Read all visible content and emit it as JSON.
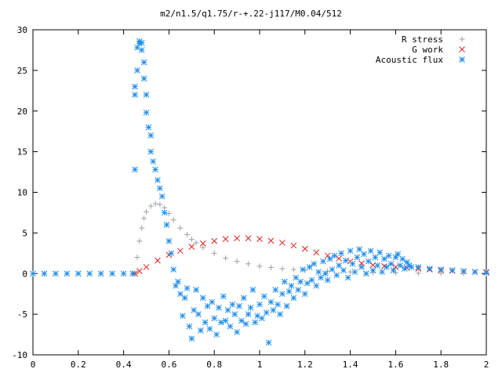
{
  "chart_data": {
    "type": "scatter",
    "title": "m2/n1.5/q1.75/r-+.22-j117/M0.04/512",
    "xlabel": "",
    "ylabel": "",
    "xlim": [
      0,
      2
    ],
    "ylim": [
      -10,
      30
    ],
    "x_ticks": [
      0,
      0.2,
      0.4,
      0.6,
      0.8,
      1,
      1.2,
      1.4,
      1.6,
      1.8,
      2
    ],
    "x_tick_labels": [
      "0",
      "0.2",
      "0.4",
      "0.6",
      "0.8",
      "1",
      "1.2",
      "1.4",
      "1.6",
      "1.8",
      "2"
    ],
    "y_ticks": [
      -10,
      -5,
      0,
      5,
      10,
      15,
      20,
      25,
      30
    ],
    "y_tick_labels": [
      "-10",
      "-5",
      "0",
      "5",
      "10",
      "15",
      "20",
      "25",
      "30"
    ],
    "grid": false,
    "legend_position": "top-right",
    "series": [
      {
        "name": "R stress",
        "marker": "plus",
        "color": "#a0a0a0",
        "points": [
          [
            0.45,
            0.0
          ],
          [
            0.46,
            2.0
          ],
          [
            0.47,
            4.0
          ],
          [
            0.48,
            5.6
          ],
          [
            0.49,
            6.8
          ],
          [
            0.5,
            7.6
          ],
          [
            0.52,
            8.3
          ],
          [
            0.54,
            8.6
          ],
          [
            0.56,
            8.5
          ],
          [
            0.58,
            8.1
          ],
          [
            0.6,
            7.4
          ],
          [
            0.62,
            6.6
          ],
          [
            0.65,
            5.6
          ],
          [
            0.68,
            4.8
          ],
          [
            0.7,
            4.2
          ],
          [
            0.72,
            3.8
          ],
          [
            0.75,
            3.2
          ],
          [
            0.8,
            2.5
          ],
          [
            0.85,
            1.9
          ],
          [
            0.9,
            1.5
          ],
          [
            0.95,
            1.2
          ],
          [
            1.0,
            0.9
          ],
          [
            1.05,
            0.75
          ],
          [
            1.1,
            0.6
          ],
          [
            1.15,
            0.5
          ],
          [
            1.2,
            0.42
          ],
          [
            1.3,
            0.3
          ],
          [
            1.4,
            0.2
          ],
          [
            1.5,
            0.12
          ],
          [
            1.6,
            0.08
          ],
          [
            1.7,
            0.05
          ],
          [
            1.8,
            0.03
          ],
          [
            1.9,
            0.02
          ],
          [
            2.0,
            0.01
          ]
        ]
      },
      {
        "name": "G work",
        "marker": "cross",
        "color": "#e0201e",
        "points": [
          [
            0.45,
            0.0
          ],
          [
            0.47,
            0.3
          ],
          [
            0.5,
            0.8
          ],
          [
            0.55,
            1.6
          ],
          [
            0.6,
            2.3
          ],
          [
            0.65,
            2.8
          ],
          [
            0.7,
            3.3
          ],
          [
            0.75,
            3.7
          ],
          [
            0.8,
            4.0
          ],
          [
            0.85,
            4.25
          ],
          [
            0.9,
            4.35
          ],
          [
            0.95,
            4.35
          ],
          [
            1.0,
            4.25
          ],
          [
            1.05,
            4.05
          ],
          [
            1.1,
            3.8
          ],
          [
            1.15,
            3.45
          ],
          [
            1.2,
            3.05
          ],
          [
            1.25,
            2.6
          ],
          [
            1.3,
            2.2
          ],
          [
            1.35,
            1.85
          ],
          [
            1.4,
            1.5
          ],
          [
            1.45,
            1.25
          ],
          [
            1.5,
            1.05
          ],
          [
            1.55,
            0.9
          ],
          [
            1.6,
            0.8
          ],
          [
            1.65,
            0.7
          ],
          [
            1.7,
            0.6
          ],
          [
            1.75,
            0.5
          ],
          [
            1.8,
            0.42
          ],
          [
            1.85,
            0.35
          ],
          [
            1.9,
            0.28
          ],
          [
            1.95,
            0.22
          ],
          [
            2.0,
            0.18
          ]
        ]
      },
      {
        "name": "Acoustic flux",
        "marker": "star",
        "color": "#1f8de8",
        "points": [
          [
            0.0,
            0.0
          ],
          [
            0.05,
            0.0
          ],
          [
            0.1,
            0.0
          ],
          [
            0.15,
            0.0
          ],
          [
            0.2,
            0.0
          ],
          [
            0.25,
            0.0
          ],
          [
            0.3,
            0.0
          ],
          [
            0.35,
            0.0
          ],
          [
            0.4,
            0.0
          ],
          [
            0.44,
            0.0
          ],
          [
            0.45,
            12.8
          ],
          [
            0.45,
            22.0
          ],
          [
            0.45,
            23.0
          ],
          [
            0.46,
            25.0
          ],
          [
            0.46,
            27.8
          ],
          [
            0.47,
            28.3
          ],
          [
            0.47,
            28.6
          ],
          [
            0.48,
            28.4
          ],
          [
            0.48,
            27.5
          ],
          [
            0.49,
            26.0
          ],
          [
            0.49,
            24.0
          ],
          [
            0.5,
            22.0
          ],
          [
            0.5,
            19.8
          ],
          [
            0.51,
            18.0
          ],
          [
            0.52,
            17.0
          ],
          [
            0.52,
            15.0
          ],
          [
            0.53,
            13.8
          ],
          [
            0.54,
            12.8
          ],
          [
            0.55,
            11.5
          ],
          [
            0.56,
            10.5
          ],
          [
            0.57,
            9.5
          ],
          [
            0.58,
            7.5
          ],
          [
            0.59,
            6.0
          ],
          [
            0.6,
            4.0
          ],
          [
            0.61,
            2.5
          ],
          [
            0.62,
            0.5
          ],
          [
            0.63,
            -1.5
          ],
          [
            0.64,
            -1.0
          ],
          [
            0.65,
            -2.5
          ],
          [
            0.66,
            -5.2
          ],
          [
            0.67,
            -3.0
          ],
          [
            0.68,
            -1.8
          ],
          [
            0.69,
            -6.5
          ],
          [
            0.7,
            -8.0
          ],
          [
            0.71,
            -4.5
          ],
          [
            0.72,
            -2.0
          ],
          [
            0.73,
            -5.0
          ],
          [
            0.74,
            -7.0
          ],
          [
            0.75,
            -3.0
          ],
          [
            0.76,
            -6.0
          ],
          [
            0.77,
            -4.0
          ],
          [
            0.78,
            -6.8
          ],
          [
            0.79,
            -3.5
          ],
          [
            0.8,
            -5.5
          ],
          [
            0.81,
            -7.5
          ],
          [
            0.82,
            -4.2
          ],
          [
            0.83,
            -6.0
          ],
          [
            0.84,
            -2.8
          ],
          [
            0.85,
            -5.8
          ],
          [
            0.86,
            -4.5
          ],
          [
            0.87,
            -6.5
          ],
          [
            0.88,
            -3.8
          ],
          [
            0.89,
            -5.0
          ],
          [
            0.9,
            -7.2
          ],
          [
            0.91,
            -4.0
          ],
          [
            0.92,
            -5.8
          ],
          [
            0.93,
            -3.0
          ],
          [
            0.94,
            -6.2
          ],
          [
            0.95,
            -5.0
          ],
          [
            0.96,
            -4.2
          ],
          [
            0.97,
            -2.0
          ],
          [
            0.98,
            -6.0
          ],
          [
            0.99,
            -5.2
          ],
          [
            1.0,
            -3.8
          ],
          [
            1.01,
            -5.5
          ],
          [
            1.02,
            -2.8
          ],
          [
            1.03,
            -4.8
          ],
          [
            1.04,
            -8.5
          ],
          [
            1.05,
            -3.5
          ],
          [
            1.06,
            -4.5
          ],
          [
            1.07,
            -2.0
          ],
          [
            1.08,
            -3.8
          ],
          [
            1.09,
            -5.0
          ],
          [
            1.1,
            -2.5
          ],
          [
            1.11,
            -1.0
          ],
          [
            1.12,
            -4.0
          ],
          [
            1.13,
            -2.2
          ],
          [
            1.14,
            -1.5
          ],
          [
            1.15,
            -3.0
          ],
          [
            1.16,
            -0.5
          ],
          [
            1.17,
            -2.0
          ],
          [
            1.18,
            -1.0
          ],
          [
            1.19,
            0.5
          ],
          [
            1.2,
            -2.5
          ],
          [
            1.21,
            -1.2
          ],
          [
            1.22,
            0.8
          ],
          [
            1.23,
            -0.8
          ],
          [
            1.24,
            1.2
          ],
          [
            1.25,
            -1.5
          ],
          [
            1.26,
            0.2
          ],
          [
            1.27,
            -0.5
          ],
          [
            1.28,
            1.5
          ],
          [
            1.29,
            0.0
          ],
          [
            1.3,
            -0.8
          ],
          [
            1.31,
            1.8
          ],
          [
            1.32,
            0.5
          ],
          [
            1.33,
            2.2
          ],
          [
            1.34,
            -0.2
          ],
          [
            1.35,
            1.0
          ],
          [
            1.36,
            2.5
          ],
          [
            1.37,
            0.4
          ],
          [
            1.38,
            1.6
          ],
          [
            1.39,
            -0.5
          ],
          [
            1.4,
            2.8
          ],
          [
            1.41,
            1.2
          ],
          [
            1.42,
            0.2
          ],
          [
            1.43,
            2.0
          ],
          [
            1.44,
            3.0
          ],
          [
            1.45,
            0.8
          ],
          [
            1.46,
            2.4
          ],
          [
            1.47,
            0.0
          ],
          [
            1.48,
            1.5
          ],
          [
            1.49,
            2.8
          ],
          [
            1.5,
            0.4
          ],
          [
            1.51,
            2.0
          ],
          [
            1.52,
            1.0
          ],
          [
            1.53,
            2.6
          ],
          [
            1.54,
            0.2
          ],
          [
            1.55,
            1.8
          ],
          [
            1.56,
            0.8
          ],
          [
            1.57,
            2.2
          ],
          [
            1.58,
            1.2
          ],
          [
            1.59,
            0.4
          ],
          [
            1.6,
            2.0
          ],
          [
            1.61,
            2.4
          ],
          [
            1.62,
            1.0
          ],
          [
            1.63,
            1.8
          ],
          [
            1.64,
            0.6
          ],
          [
            1.65,
            1.4
          ],
          [
            1.66,
            1.0
          ],
          [
            1.67,
            0.8
          ],
          [
            1.7,
            0.8
          ],
          [
            1.75,
            0.6
          ],
          [
            1.8,
            0.5
          ],
          [
            1.85,
            0.4
          ],
          [
            1.9,
            0.3
          ],
          [
            1.95,
            0.2
          ],
          [
            2.0,
            0.1
          ]
        ]
      }
    ]
  }
}
